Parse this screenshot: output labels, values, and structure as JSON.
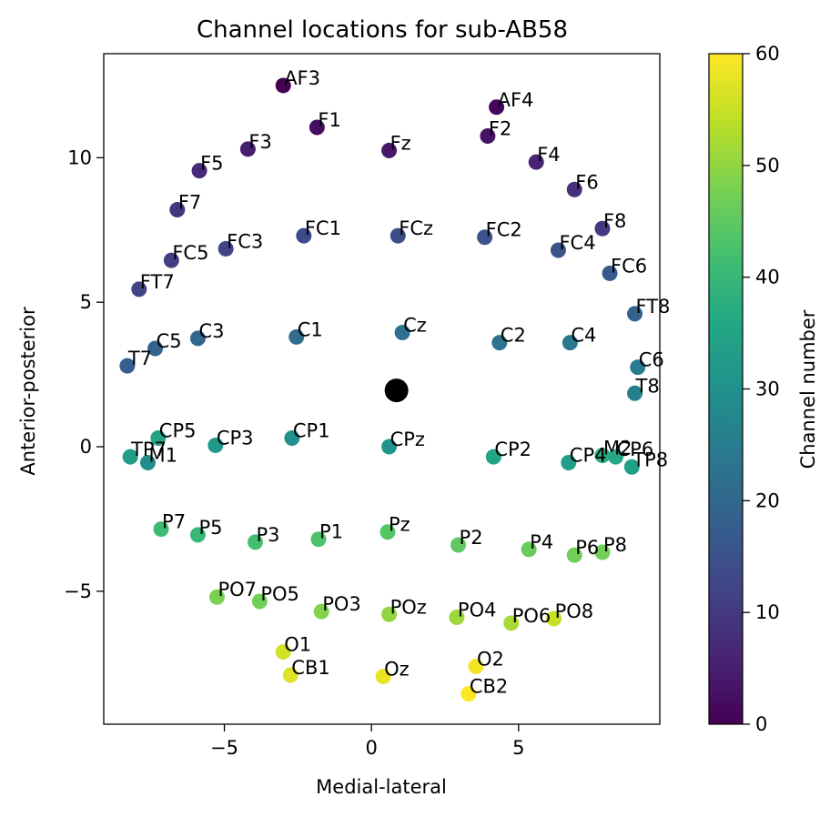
{
  "chart_data": {
    "type": "scatter",
    "title": "Channel locations for sub-AB58",
    "xlabel": "Medial-lateral",
    "ylabel": "Anterior-posterior",
    "xlim": [
      -9.1,
      9.8
    ],
    "ylim": [
      -9.6,
      13.6
    ],
    "xticks": [
      -5,
      0,
      5
    ],
    "xtick_labels": [
      "−5",
      "0",
      "5"
    ],
    "yticks": [
      -5,
      0,
      5,
      10
    ],
    "ytick_labels": [
      "−5",
      "0",
      "5",
      "10"
    ],
    "colorbar": {
      "label": "Channel number",
      "colormap": "viridis",
      "range": [
        0,
        60
      ],
      "ticks": [
        0,
        10,
        20,
        30,
        40,
        50,
        60
      ],
      "tick_labels": [
        "0",
        "10",
        "20",
        "30",
        "40",
        "50",
        "60"
      ]
    },
    "grid": false,
    "center_marker": {
      "x": 0.85,
      "y": 1.95,
      "color": "#000000"
    },
    "points": [
      {
        "label": "AF3",
        "x": -3.0,
        "y": 12.5,
        "c": 0
      },
      {
        "label": "AF4",
        "x": 4.25,
        "y": 11.75,
        "c": 1
      },
      {
        "label": "F1",
        "x": -1.85,
        "y": 11.05,
        "c": 2
      },
      {
        "label": "F2",
        "x": 3.95,
        "y": 10.75,
        "c": 3
      },
      {
        "label": "Fz",
        "x": 0.6,
        "y": 10.25,
        "c": 4
      },
      {
        "label": "F3",
        "x": -4.2,
        "y": 10.3,
        "c": 5
      },
      {
        "label": "F4",
        "x": 5.6,
        "y": 9.85,
        "c": 6
      },
      {
        "label": "F5",
        "x": -5.85,
        "y": 9.55,
        "c": 7
      },
      {
        "label": "F6",
        "x": 6.9,
        "y": 8.9,
        "c": 8
      },
      {
        "label": "F7",
        "x": -6.6,
        "y": 8.2,
        "c": 9
      },
      {
        "label": "F8",
        "x": 7.85,
        "y": 7.55,
        "c": 10
      },
      {
        "label": "FC1",
        "x": -2.3,
        "y": 7.3,
        "c": 13
      },
      {
        "label": "FCz",
        "x": 0.9,
        "y": 7.3,
        "c": 14
      },
      {
        "label": "FC2",
        "x": 3.85,
        "y": 7.25,
        "c": 15
      },
      {
        "label": "FC3",
        "x": -4.95,
        "y": 6.85,
        "c": 12
      },
      {
        "label": "FC4",
        "x": 6.35,
        "y": 6.8,
        "c": 15
      },
      {
        "label": "FC5",
        "x": -6.8,
        "y": 6.45,
        "c": 11
      },
      {
        "label": "FC6",
        "x": 8.1,
        "y": 6.0,
        "c": 17
      },
      {
        "label": "FT7",
        "x": -7.9,
        "y": 5.45,
        "c": 12
      },
      {
        "label": "FT8",
        "x": 8.95,
        "y": 4.6,
        "c": 19
      },
      {
        "label": "Cz",
        "x": 1.05,
        "y": 3.95,
        "c": 22
      },
      {
        "label": "C1",
        "x": -2.55,
        "y": 3.8,
        "c": 21
      },
      {
        "label": "C2",
        "x": 4.35,
        "y": 3.6,
        "c": 23
      },
      {
        "label": "C3",
        "x": -5.9,
        "y": 3.75,
        "c": 20
      },
      {
        "label": "C4",
        "x": 6.75,
        "y": 3.6,
        "c": 24
      },
      {
        "label": "C5",
        "x": -7.35,
        "y": 3.4,
        "c": 19
      },
      {
        "label": "C6",
        "x": 9.05,
        "y": 2.75,
        "c": 25
      },
      {
        "label": "T7",
        "x": -8.3,
        "y": 2.8,
        "c": 18
      },
      {
        "label": "T8",
        "x": 8.95,
        "y": 1.85,
        "c": 26
      },
      {
        "label": "CP5",
        "x": -7.25,
        "y": 0.3,
        "c": 35
      },
      {
        "label": "CP3",
        "x": -5.3,
        "y": 0.05,
        "c": 32
      },
      {
        "label": "CP1",
        "x": -2.7,
        "y": 0.3,
        "c": 30
      },
      {
        "label": "CPz",
        "x": 0.6,
        "y": 0.0,
        "c": 31
      },
      {
        "label": "CP2",
        "x": 4.15,
        "y": -0.35,
        "c": 35
      },
      {
        "label": "CP4",
        "x": 6.7,
        "y": -0.55,
        "c": 33
      },
      {
        "label": "M2",
        "x": 7.85,
        "y": -0.3,
        "c": 37
      },
      {
        "label": "CP6",
        "x": 8.3,
        "y": -0.35,
        "c": 36
      },
      {
        "label": "TP8",
        "x": 8.85,
        "y": -0.7,
        "c": 34
      },
      {
        "label": "TP7",
        "x": -8.2,
        "y": -0.35,
        "c": 33
      },
      {
        "label": "M1",
        "x": -7.6,
        "y": -0.55,
        "c": 29
      },
      {
        "label": "P7",
        "x": -7.15,
        "y": -2.85,
        "c": 41
      },
      {
        "label": "P5",
        "x": -5.9,
        "y": -3.05,
        "c": 40
      },
      {
        "label": "P3",
        "x": -3.95,
        "y": -3.3,
        "c": 42
      },
      {
        "label": "P1",
        "x": -1.8,
        "y": -3.2,
        "c": 43
      },
      {
        "label": "Pz",
        "x": 0.55,
        "y": -2.95,
        "c": 44
      },
      {
        "label": "P2",
        "x": 2.95,
        "y": -3.4,
        "c": 45
      },
      {
        "label": "P4",
        "x": 5.35,
        "y": -3.55,
        "c": 46
      },
      {
        "label": "P6",
        "x": 6.9,
        "y": -3.75,
        "c": 47
      },
      {
        "label": "P8",
        "x": 7.85,
        "y": -3.65,
        "c": 47
      },
      {
        "label": "PO7",
        "x": -5.25,
        "y": -5.2,
        "c": 48
      },
      {
        "label": "PO5",
        "x": -3.8,
        "y": -5.35,
        "c": 47
      },
      {
        "label": "PO3",
        "x": -1.7,
        "y": -5.7,
        "c": 49
      },
      {
        "label": "POz",
        "x": 0.6,
        "y": -5.8,
        "c": 50
      },
      {
        "label": "PO4",
        "x": 2.9,
        "y": -5.9,
        "c": 51
      },
      {
        "label": "PO6",
        "x": 4.75,
        "y": -6.1,
        "c": 52
      },
      {
        "label": "PO8",
        "x": 6.2,
        "y": -5.95,
        "c": 55
      },
      {
        "label": "O1",
        "x": -3.0,
        "y": -7.1,
        "c": 56
      },
      {
        "label": "CB1",
        "x": -2.75,
        "y": -7.9,
        "c": 57
      },
      {
        "label": "Oz",
        "x": 0.4,
        "y": -7.95,
        "c": 58
      },
      {
        "label": "O2",
        "x": 3.55,
        "y": -7.6,
        "c": 59
      },
      {
        "label": "CB2",
        "x": 3.3,
        "y": -8.55,
        "c": 60
      }
    ]
  }
}
